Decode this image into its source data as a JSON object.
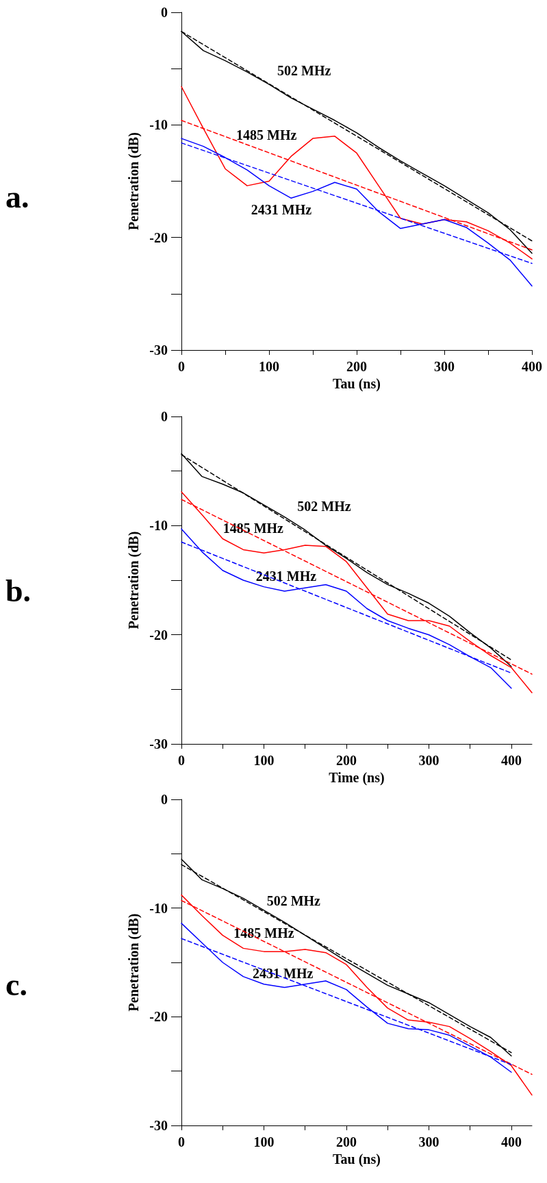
{
  "chart_data": [
    {
      "type": "line",
      "xlabel": "Tau (ns)",
      "ylabel": "Penetration (dB)",
      "annotations": [
        "a."
      ],
      "x": [
        0,
        25,
        50,
        75,
        100,
        125,
        150,
        175,
        200,
        225,
        250,
        275,
        300,
        325,
        350,
        375,
        400
      ],
      "xlim": [
        0,
        400
      ],
      "xticks": [
        0,
        {
          "value": 50,
          "label": null
        },
        100,
        {
          "value": 150,
          "label": null
        },
        200,
        {
          "value": 250,
          "label": null
        },
        300,
        {
          "value": 350,
          "label": null
        },
        400
      ],
      "ylim": [
        -30,
        0
      ],
      "yticks": [
        -30,
        {
          "value": -25,
          "label": null
        },
        -20,
        {
          "value": -15,
          "label": null
        },
        -10,
        {
          "value": -5,
          "label": null
        },
        0
      ],
      "grid": false,
      "legend": false,
      "marker": "none",
      "series": [
        {
          "name": "502 MHz",
          "color": "#000000",
          "line_style": "solid",
          "values": [
            -1.7,
            -3.4,
            -4.3,
            -5.3,
            -6.4,
            -7.6,
            -8.6,
            -9.6,
            -10.7,
            -12.0,
            -13.2,
            -14.3,
            -15.4,
            -16.6,
            -17.8,
            -19.3,
            -21.4
          ]
        },
        {
          "color": "#000000",
          "line_style": "dashed",
          "x": [
            0,
            400
          ],
          "values": [
            -1.7,
            -20.3
          ]
        },
        {
          "name": "1485 MHz",
          "color": "#ff0000",
          "line_style": "solid",
          "values": [
            -6.6,
            -10.3,
            -13.9,
            -15.4,
            -15.0,
            -12.8,
            -11.2,
            -11.0,
            -12.5,
            -15.4,
            -18.3,
            -18.8,
            -18.4,
            -18.6,
            -19.4,
            -20.5,
            -21.9
          ]
        },
        {
          "color": "#ff0000",
          "line_style": "dashed",
          "x": [
            0,
            400
          ],
          "values": [
            -9.6,
            -21.1
          ]
        },
        {
          "name": "2431 MHz",
          "color": "#0000ff",
          "line_style": "solid",
          "values": [
            -11.2,
            -11.9,
            -12.9,
            -14.0,
            -15.4,
            -16.5,
            -15.9,
            -15.1,
            -15.7,
            -17.7,
            -19.2,
            -18.8,
            -18.4,
            -19.1,
            -20.5,
            -22.0,
            -24.3
          ]
        },
        {
          "color": "#0000ff",
          "line_style": "dashed",
          "x": [
            0,
            400
          ],
          "values": [
            -11.6,
            -22.3
          ]
        }
      ]
    },
    {
      "type": "line",
      "xlabel": "Time (ns)",
      "ylabel": "Penetration (dB)",
      "annotations": [
        "b."
      ],
      "x": [
        0,
        25,
        50,
        75,
        100,
        125,
        150,
        175,
        200,
        225,
        250,
        275,
        300,
        325,
        350,
        375,
        400
      ],
      "xlim": [
        0,
        425
      ],
      "xticks": [
        0,
        {
          "value": 50,
          "label": null
        },
        100,
        {
          "value": 150,
          "label": null
        },
        200,
        {
          "value": 250,
          "label": null
        },
        300,
        {
          "value": 350,
          "label": null
        },
        400
      ],
      "ylim": [
        -30,
        0
      ],
      "yticks": [
        -30,
        {
          "value": -25,
          "label": null
        },
        -20,
        {
          "value": -15,
          "label": null
        },
        -10,
        {
          "value": -5,
          "label": null
        },
        0
      ],
      "grid": false,
      "legend": false,
      "marker": "none",
      "series": [
        {
          "name": "502 MHz",
          "color": "#000000",
          "line_style": "solid",
          "values": [
            -3.4,
            -5.5,
            -6.2,
            -7.0,
            -8.1,
            -9.2,
            -10.4,
            -11.8,
            -13.0,
            -14.3,
            -15.4,
            -16.2,
            -17.1,
            -18.3,
            -19.8,
            -21.2,
            -22.9
          ]
        },
        {
          "color": "#000000",
          "line_style": "dashed",
          "x": [
            0,
            400
          ],
          "values": [
            -3.5,
            -22.3
          ]
        },
        {
          "name": "1485 MHz",
          "color": "#ff0000",
          "line_style": "solid",
          "x": [
            0,
            25,
            50,
            75,
            100,
            125,
            150,
            175,
            200,
            225,
            250,
            275,
            300,
            325,
            350,
            375,
            400,
            425
          ],
          "values": [
            -6.9,
            -9.0,
            -11.2,
            -12.2,
            -12.5,
            -12.2,
            -11.8,
            -11.9,
            -13.3,
            -15.7,
            -18.1,
            -18.7,
            -18.7,
            -19.2,
            -20.6,
            -21.9,
            -23.0,
            -25.3
          ]
        },
        {
          "color": "#ff0000",
          "line_style": "dashed",
          "x": [
            0,
            425
          ],
          "values": [
            -7.6,
            -23.6
          ]
        },
        {
          "name": "2431 MHz",
          "color": "#0000ff",
          "line_style": "solid",
          "values": [
            -10.3,
            -12.4,
            -14.1,
            -15.0,
            -15.6,
            -16.0,
            -15.7,
            -15.4,
            -16.0,
            -17.6,
            -18.7,
            -19.4,
            -20.0,
            -20.9,
            -22.0,
            -23.0,
            -24.9
          ]
        },
        {
          "color": "#0000ff",
          "line_style": "dashed",
          "x": [
            0,
            400
          ],
          "values": [
            -11.5,
            -23.5
          ]
        }
      ]
    },
    {
      "type": "line",
      "xlabel": "Tau (ns)",
      "ylabel": "Penetration (dB)",
      "annotations": [
        "c."
      ],
      "x": [
        0,
        25,
        50,
        75,
        100,
        125,
        150,
        175,
        200,
        225,
        250,
        275,
        300,
        325,
        350,
        375,
        400
      ],
      "xlim": [
        0,
        425
      ],
      "xticks": [
        0,
        {
          "value": 50,
          "label": null
        },
        100,
        {
          "value": 150,
          "label": null
        },
        200,
        {
          "value": 250,
          "label": null
        },
        300,
        {
          "value": 350,
          "label": null
        },
        400
      ],
      "ylim": [
        -30,
        0
      ],
      "yticks": [
        -30,
        {
          "value": -25,
          "label": null
        },
        -20,
        {
          "value": -15,
          "label": null
        },
        -10,
        {
          "value": -5,
          "label": null
        },
        0
      ],
      "grid": false,
      "legend": false,
      "marker": "none",
      "series": [
        {
          "name": "502 MHz",
          "color": "#000000",
          "line_style": "solid",
          "values": [
            -5.5,
            -7.4,
            -8.2,
            -9.1,
            -10.2,
            -11.3,
            -12.5,
            -13.7,
            -14.9,
            -16.0,
            -17.1,
            -17.9,
            -18.7,
            -19.8,
            -20.9,
            -21.9,
            -23.6
          ]
        },
        {
          "color": "#000000",
          "line_style": "dashed",
          "x": [
            0,
            400
          ],
          "values": [
            -6.0,
            -23.3
          ]
        },
        {
          "name": "1485 MHz",
          "color": "#ff0000",
          "line_style": "solid",
          "x": [
            0,
            25,
            50,
            75,
            100,
            125,
            150,
            175,
            200,
            225,
            250,
            275,
            300,
            325,
            350,
            375,
            400,
            425
          ],
          "values": [
            -8.8,
            -10.7,
            -12.5,
            -13.7,
            -14.0,
            -14.0,
            -13.8,
            -14.1,
            -15.2,
            -17.3,
            -19.2,
            -20.3,
            -20.5,
            -20.9,
            -22.0,
            -23.2,
            -24.5,
            -27.2
          ]
        },
        {
          "color": "#ff0000",
          "line_style": "dashed",
          "x": [
            0,
            425
          ],
          "values": [
            -9.3,
            -25.3
          ]
        },
        {
          "name": "2431 MHz",
          "color": "#0000ff",
          "line_style": "solid",
          "values": [
            -11.4,
            -13.2,
            -15.0,
            -16.3,
            -17.0,
            -17.3,
            -17.0,
            -16.7,
            -17.5,
            -19.1,
            -20.6,
            -21.1,
            -21.2,
            -21.7,
            -22.7,
            -23.7,
            -25.1
          ]
        },
        {
          "color": "#0000ff",
          "line_style": "dashed",
          "x": [
            0,
            400
          ],
          "values": [
            -12.8,
            -24.4
          ]
        }
      ]
    }
  ]
}
